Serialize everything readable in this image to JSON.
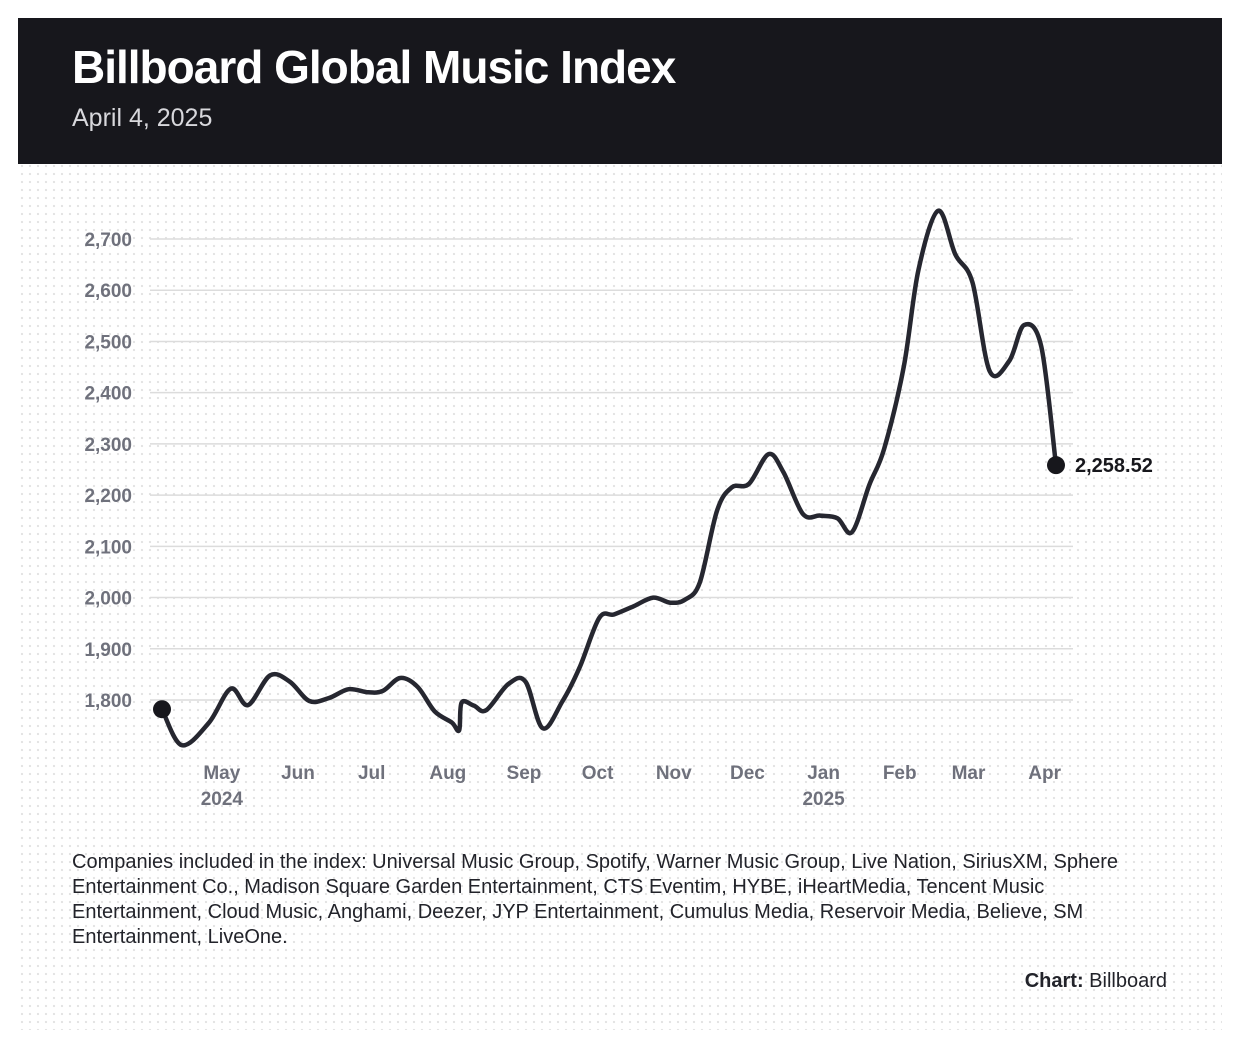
{
  "header": {
    "title": "Billboard Global Music Index",
    "subtitle": "April 4, 2025"
  },
  "chart_data": {
    "type": "line",
    "title": "Billboard Global Music Index",
    "subtitle": "April 4, 2025",
    "xlabel": "",
    "ylabel": "",
    "ylim": [
      1700,
      2750
    ],
    "y_ticks": [
      1800,
      1900,
      2000,
      2100,
      2200,
      2300,
      2400,
      2500,
      2600,
      2700
    ],
    "y_tick_labels": [
      "1,800",
      "1,900",
      "2,000",
      "2,100",
      "2,200",
      "2,300",
      "2,400",
      "2,500",
      "2,600",
      "2,700"
    ],
    "x_ticks": [
      {
        "date": "2024-05-01",
        "label": "May",
        "year": "2024"
      },
      {
        "date": "2024-06-01",
        "label": "Jun",
        "year": ""
      },
      {
        "date": "2024-07-01",
        "label": "Jul",
        "year": ""
      },
      {
        "date": "2024-08-01",
        "label": "Aug",
        "year": ""
      },
      {
        "date": "2024-09-01",
        "label": "Sep",
        "year": ""
      },
      {
        "date": "2024-10-01",
        "label": "Oct",
        "year": ""
      },
      {
        "date": "2024-11-01",
        "label": "Nov",
        "year": ""
      },
      {
        "date": "2024-12-01",
        "label": "Dec",
        "year": ""
      },
      {
        "date": "2025-01-01",
        "label": "Jan",
        "year": "2025"
      },
      {
        "date": "2025-02-01",
        "label": "Feb",
        "year": ""
      },
      {
        "date": "2025-03-01",
        "label": "Mar",
        "year": ""
      },
      {
        "date": "2025-04-01",
        "label": "Apr",
        "year": ""
      }
    ],
    "grid": true,
    "series": [
      {
        "x": [
          "2024-04-05",
          "2024-04-13",
          "2024-04-24",
          "2024-05-03",
          "2024-05-10",
          "2024-05-19",
          "2024-05-27",
          "2024-06-04",
          "2024-06-12",
          "2024-06-20",
          "2024-06-28",
          "2024-07-04",
          "2024-07-11",
          "2024-07-18",
          "2024-07-25",
          "2024-08-01",
          "2024-08-04",
          "2024-08-05",
          "2024-08-10",
          "2024-08-15",
          "2024-08-24",
          "2024-08-31",
          "2024-09-07",
          "2024-09-15",
          "2024-09-22",
          "2024-09-30",
          "2024-10-06",
          "2024-10-14",
          "2024-10-22",
          "2024-10-29",
          "2024-11-04",
          "2024-11-10",
          "2024-11-17",
          "2024-11-23",
          "2024-11-30",
          "2024-12-08",
          "2024-12-14",
          "2024-12-22",
          "2024-12-29",
          "2025-01-05",
          "2025-01-11",
          "2025-01-18",
          "2025-01-24",
          "2025-02-01",
          "2025-02-07",
          "2025-02-15",
          "2025-02-22",
          "2025-03-01",
          "2025-03-08",
          "2025-03-16",
          "2025-03-22",
          "2025-03-29",
          "2025-04-04"
        ],
        "values": [
          1782,
          1712,
          1755,
          1822,
          1790,
          1848,
          1836,
          1798,
          1804,
          1821,
          1815,
          1818,
          1843,
          1826,
          1778,
          1756,
          1741,
          1795,
          1789,
          1780,
          1831,
          1836,
          1745,
          1797,
          1863,
          1960,
          1967,
          1983,
          2000,
          1990,
          1996,
          2030,
          2170,
          2215,
          2222,
          2280,
          2245,
          2163,
          2160,
          2155,
          2128,
          2220,
          2290,
          2450,
          2640,
          2755,
          2670,
          2615,
          2442,
          2462,
          2532,
          2490,
          2258.52
        ]
      }
    ],
    "end_label": "2,258.52",
    "annotations": [
      "2,258.52"
    ]
  },
  "footer": {
    "notes": "Companies included in the index: Universal Music Group, Spotify, Warner Music Group, Live Nation, SiriusXM, Sphere Entertainment Co., Madison Square Garden Entertainment, CTS Eventim, HYBE, iHeartMedia, Tencent Music Entertainment, Cloud Music, Anghami, Deezer, JYP Entertainment, Cumulus Media, Reservoir Media, Believe, SM Entertainment, LiveOne.",
    "credit_label": "Chart:",
    "credit_value": "Billboard"
  },
  "colors": {
    "header_bg": "#17171c",
    "line": "#262730",
    "grid": "#dcdcdc",
    "tick_text": "#6f717c"
  }
}
